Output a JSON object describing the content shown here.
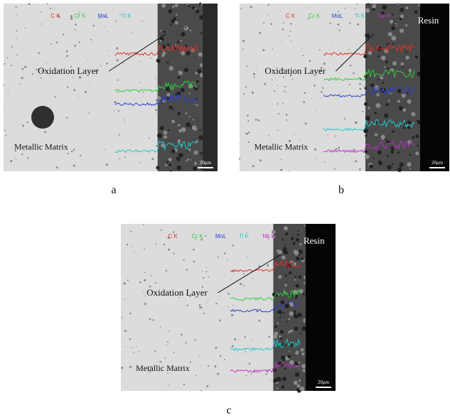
{
  "panels": [
    {
      "element_labels": [
        "C K",
        "Cr K",
        "MoL",
        "Ti K"
      ],
      "oxidation_label": "Oxidation Layer",
      "matrix_label": "Metallic Matrix",
      "scale_bar": "20μm",
      "caption": "a"
    },
    {
      "element_labels": [
        "C K",
        "Cr K",
        "MoL",
        "Ti K",
        "Nb K"
      ],
      "resin_label": "Resin",
      "oxidation_label": "Oxidation Layer",
      "matrix_label": "Metallic Matrix",
      "scale_bar": "20μm",
      "caption": "b"
    },
    {
      "element_labels": [
        "C K",
        "Cr K",
        "MoL",
        "Ti K",
        "Nb K"
      ],
      "resin_label": "Resin",
      "oxidation_label": "Oxidation Layer",
      "matrix_label": "Metallic Matrix",
      "scale_bar": "20μm",
      "caption": "c"
    }
  ]
}
